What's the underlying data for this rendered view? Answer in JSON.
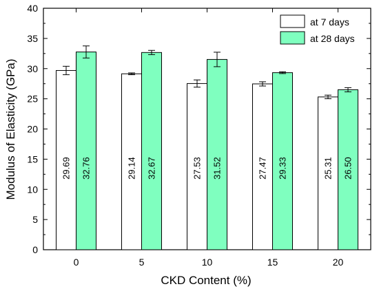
{
  "chart_data": {
    "type": "bar",
    "title": "",
    "xlabel": "CKD Content (%)",
    "ylabel": "Modulus of Elasticity (GPa)",
    "categories": [
      "0",
      "5",
      "10",
      "15",
      "20"
    ],
    "ylim": [
      0,
      40
    ],
    "yticks": [
      0,
      5,
      10,
      15,
      20,
      25,
      30,
      35,
      40
    ],
    "grid": false,
    "legend_position": "top-right",
    "series": [
      {
        "name": "at 7 days",
        "color": "#ffffff",
        "values": [
          29.69,
          29.14,
          27.53,
          27.47,
          25.31
        ],
        "labels": [
          "29.69",
          "29.14",
          "27.53",
          "27.47",
          "25.31"
        ],
        "errors": [
          0.7,
          0.15,
          0.6,
          0.35,
          0.3
        ]
      },
      {
        "name": "at 28 days",
        "color": "#7fffbf",
        "values": [
          32.76,
          32.67,
          31.52,
          29.33,
          26.5
        ],
        "labels": [
          "32.76",
          "32.67",
          "31.52",
          "29.33",
          "26.50"
        ],
        "errors": [
          1.0,
          0.35,
          1.2,
          0.15,
          0.35
        ]
      }
    ]
  }
}
